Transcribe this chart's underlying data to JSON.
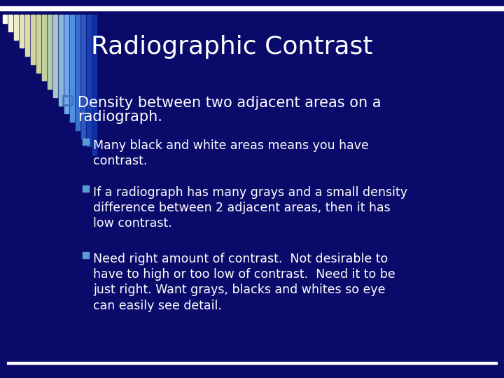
{
  "title": "Radiographic Contrast",
  "background_color": "#0a0a6b",
  "title_color": "#ffffff",
  "text_color": "#ffffff",
  "bullet_color": "#4472c4",
  "main_bullet_line1": "Density between two adjacent areas on a",
  "main_bullet_line2": "radiograph.",
  "sub_bullets": [
    "Many black and white areas means you have\ncontrast.",
    "If a radiograph has many grays and a small density\ndifference between 2 adjacent areas, then it has\nlow contrast.",
    "Need right amount of contrast.  Not desirable to\nhave to high or too low of contrast.  Need it to be\njust right. Want grays, blacks and whites so eye\ncan easily see detail."
  ],
  "bar_colors_left": [
    "#fdfde8",
    "#f5f5d8",
    "#ededc8",
    "#e4e4b8",
    "#dcdca8",
    "#d4d4a0",
    "#ccd498",
    "#c0d0a0",
    "#b0cca8"
  ],
  "bar_colors_right": [
    "#a8c8c8",
    "#88b8d8",
    "#70a8e8",
    "#5090e0",
    "#3870d0",
    "#2858c0",
    "#1840b0",
    "#1030a8"
  ],
  "top_bar_color": "#ffffff",
  "bottom_line_color": "#ffffff",
  "title_fontsize": 26,
  "main_bullet_fontsize": 15,
  "sub_bullet_fontsize": 12.5
}
